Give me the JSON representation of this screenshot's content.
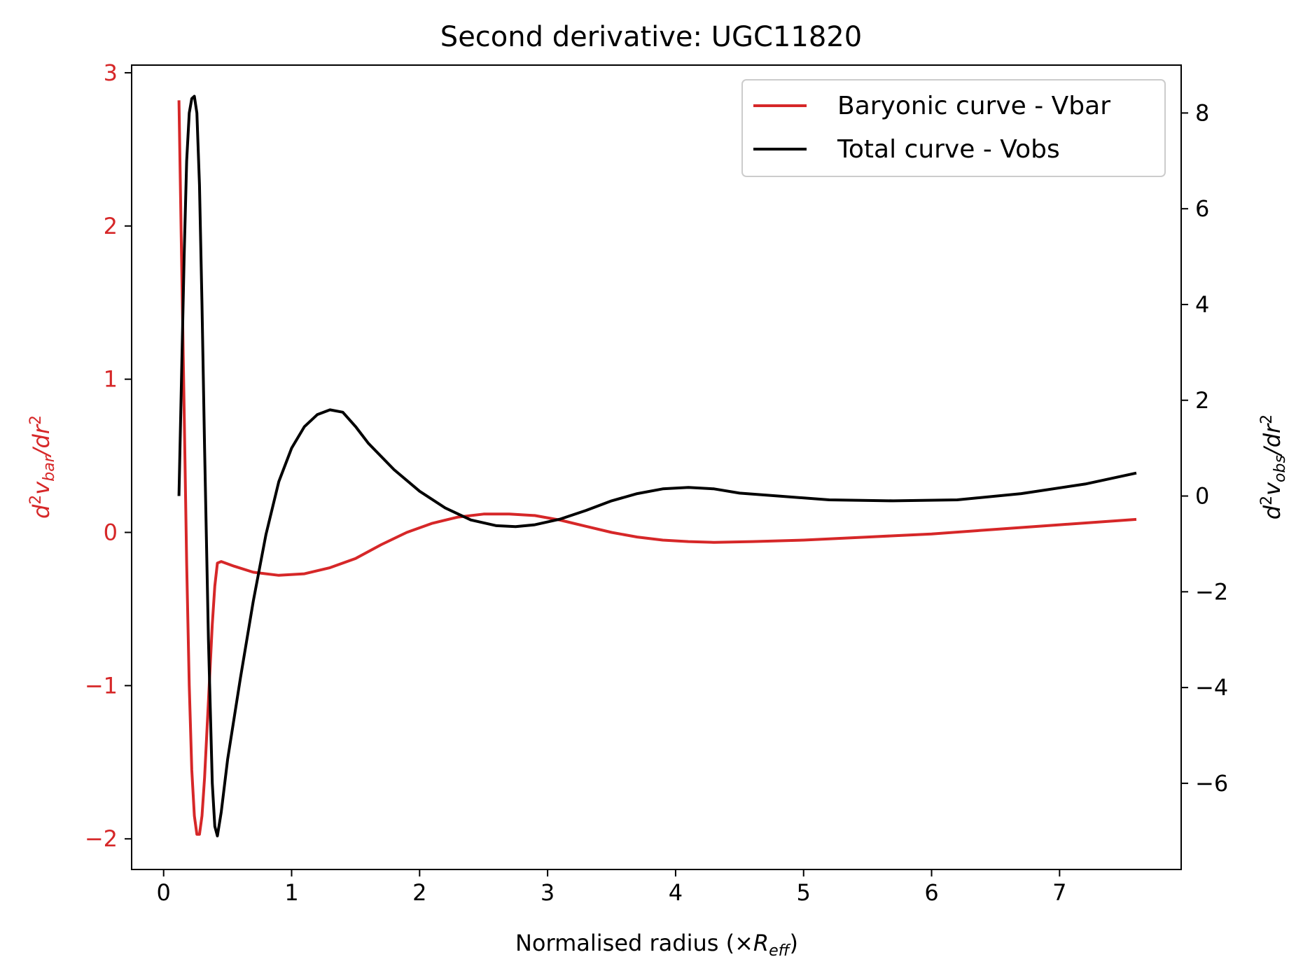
{
  "chart_data": {
    "type": "line",
    "title": "Second derivative: UGC11820",
    "xlabel": {
      "text": "Normalised radius (×",
      "symbol": "R",
      "sub": "eff",
      "close": ")"
    },
    "ylabel_left": {
      "d": "d",
      "sup": "2",
      "v": "v",
      "sub": "bar",
      "tail": "/dr",
      "sup2": "2"
    },
    "ylabel_right": {
      "d": "d",
      "sup": "2",
      "v": "v",
      "sub": "obs",
      "tail": "/dr",
      "sup2": "2"
    },
    "xlim": [
      -0.25,
      7.95
    ],
    "ylim_left": [
      -2.2,
      3.05
    ],
    "ylim_right": [
      -7.8,
      9.0
    ],
    "x_ticks": [
      0,
      1,
      2,
      3,
      4,
      5,
      6,
      7
    ],
    "x_tick_labels": [
      "0",
      "1",
      "2",
      "3",
      "4",
      "5",
      "6",
      "7"
    ],
    "y_ticks_left": [
      -2,
      -1,
      0,
      1,
      2,
      3
    ],
    "y_tick_labels_left": [
      "−2",
      "−1",
      "0",
      "1",
      "2",
      "3"
    ],
    "y_ticks_right": [
      -6,
      -4,
      -2,
      0,
      2,
      4,
      6,
      8
    ],
    "y_tick_labels_right": [
      "−6",
      "−4",
      "−2",
      "0",
      "2",
      "4",
      "6",
      "8"
    ],
    "grid": false,
    "legend_position": "top-right",
    "series": [
      {
        "name": "Baryonic curve - Vbar",
        "axis": "left",
        "color": "#d62728",
        "points": [
          [
            0.12,
            2.82
          ],
          [
            0.14,
            1.8
          ],
          [
            0.16,
            0.8
          ],
          [
            0.18,
            -0.2
          ],
          [
            0.2,
            -1.0
          ],
          [
            0.22,
            -1.55
          ],
          [
            0.24,
            -1.85
          ],
          [
            0.26,
            -1.97
          ],
          [
            0.28,
            -1.97
          ],
          [
            0.3,
            -1.85
          ],
          [
            0.32,
            -1.6
          ],
          [
            0.35,
            -1.1
          ],
          [
            0.38,
            -0.6
          ],
          [
            0.4,
            -0.35
          ],
          [
            0.42,
            -0.2
          ],
          [
            0.45,
            -0.19
          ],
          [
            0.55,
            -0.22
          ],
          [
            0.7,
            -0.26
          ],
          [
            0.9,
            -0.28
          ],
          [
            1.1,
            -0.27
          ],
          [
            1.3,
            -0.23
          ],
          [
            1.5,
            -0.17
          ],
          [
            1.7,
            -0.08
          ],
          [
            1.9,
            0.0
          ],
          [
            2.1,
            0.06
          ],
          [
            2.3,
            0.1
          ],
          [
            2.5,
            0.12
          ],
          [
            2.7,
            0.12
          ],
          [
            2.9,
            0.11
          ],
          [
            3.1,
            0.08
          ],
          [
            3.3,
            0.04
          ],
          [
            3.5,
            0.0
          ],
          [
            3.7,
            -0.03
          ],
          [
            3.9,
            -0.05
          ],
          [
            4.1,
            -0.06
          ],
          [
            4.3,
            -0.065
          ],
          [
            4.6,
            -0.06
          ],
          [
            5.0,
            -0.05
          ],
          [
            5.5,
            -0.03
          ],
          [
            6.0,
            -0.01
          ],
          [
            6.5,
            0.02
          ],
          [
            7.0,
            0.05
          ],
          [
            7.6,
            0.085
          ]
        ]
      },
      {
        "name": "Total curve - Vobs",
        "axis": "right",
        "color": "#000000",
        "points": [
          [
            0.12,
            0.0
          ],
          [
            0.14,
            2.5
          ],
          [
            0.16,
            5.0
          ],
          [
            0.18,
            7.0
          ],
          [
            0.2,
            8.0
          ],
          [
            0.22,
            8.3
          ],
          [
            0.24,
            8.35
          ],
          [
            0.26,
            8.0
          ],
          [
            0.28,
            6.5
          ],
          [
            0.3,
            4.0
          ],
          [
            0.32,
            1.0
          ],
          [
            0.35,
            -3.0
          ],
          [
            0.38,
            -6.0
          ],
          [
            0.4,
            -6.9
          ],
          [
            0.42,
            -7.1
          ],
          [
            0.45,
            -6.6
          ],
          [
            0.5,
            -5.5
          ],
          [
            0.6,
            -3.8
          ],
          [
            0.7,
            -2.2
          ],
          [
            0.8,
            -0.8
          ],
          [
            0.9,
            0.3
          ],
          [
            1.0,
            1.0
          ],
          [
            1.1,
            1.45
          ],
          [
            1.2,
            1.7
          ],
          [
            1.3,
            1.8
          ],
          [
            1.4,
            1.75
          ],
          [
            1.5,
            1.45
          ],
          [
            1.6,
            1.1
          ],
          [
            1.8,
            0.55
          ],
          [
            2.0,
            0.1
          ],
          [
            2.2,
            -0.25
          ],
          [
            2.4,
            -0.5
          ],
          [
            2.6,
            -0.62
          ],
          [
            2.75,
            -0.64
          ],
          [
            2.9,
            -0.6
          ],
          [
            3.1,
            -0.48
          ],
          [
            3.3,
            -0.3
          ],
          [
            3.5,
            -0.1
          ],
          [
            3.7,
            0.05
          ],
          [
            3.9,
            0.15
          ],
          [
            4.1,
            0.18
          ],
          [
            4.3,
            0.15
          ],
          [
            4.5,
            0.06
          ],
          [
            4.8,
            0.0
          ],
          [
            5.2,
            -0.08
          ],
          [
            5.7,
            -0.1
          ],
          [
            6.2,
            -0.08
          ],
          [
            6.7,
            0.05
          ],
          [
            7.2,
            0.25
          ],
          [
            7.6,
            0.48
          ]
        ]
      }
    ]
  }
}
